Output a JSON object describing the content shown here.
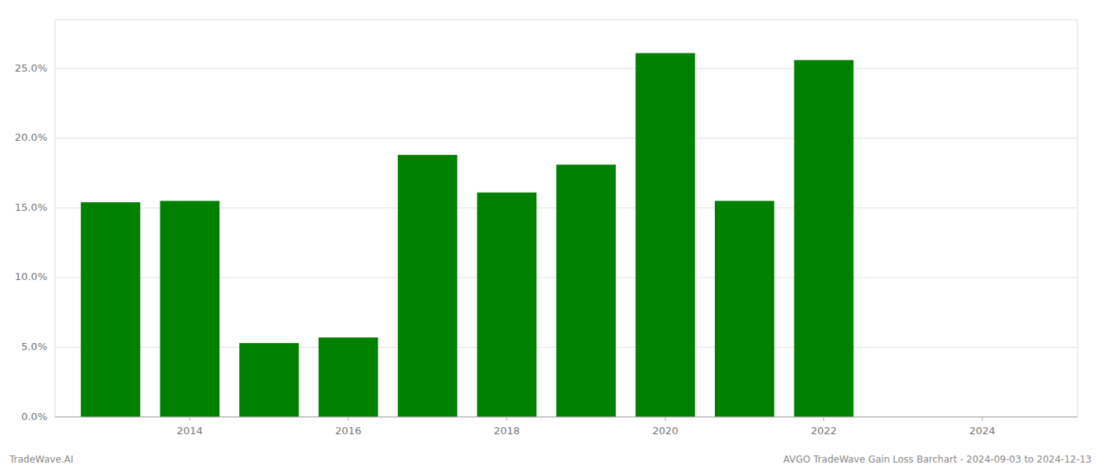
{
  "chart_data": {
    "type": "bar",
    "x": [
      2013,
      2014,
      2015,
      2016,
      2017,
      2018,
      2019,
      2020,
      2021,
      2022
    ],
    "values": [
      0.154,
      0.155,
      0.053,
      0.057,
      0.188,
      0.161,
      0.181,
      0.261,
      0.155,
      0.256
    ],
    "color": "#008000",
    "xlim": [
      2012.3,
      2025.2
    ],
    "xticks": [
      2014,
      2016,
      2018,
      2020,
      2022,
      2024
    ],
    "ylim": [
      0,
      0.285
    ],
    "yticks": [
      {
        "value": 0.0,
        "label": "0.0%"
      },
      {
        "value": 0.05,
        "label": "5.0%"
      },
      {
        "value": 0.1,
        "label": "10.0%"
      },
      {
        "value": 0.15,
        "label": "15.0%"
      },
      {
        "value": 0.2,
        "label": "20.0%"
      },
      {
        "value": 0.25,
        "label": "25.0%"
      }
    ],
    "grid": true,
    "annotations": [
      "TradeWave.AI",
      "AVGO TradeWave Gain Loss Barchart - 2024-09-03 to 2024-12-13"
    ]
  }
}
